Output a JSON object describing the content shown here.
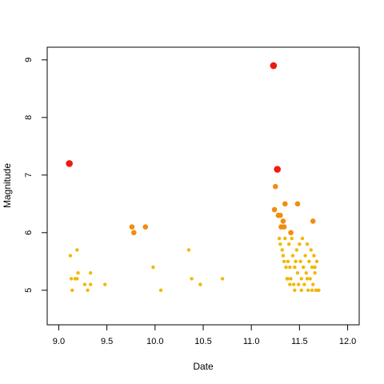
{
  "chart_data": {
    "type": "scatter",
    "title": "",
    "xlabel": "Date",
    "ylabel": "Magnitude",
    "xlim": [
      8.88,
      12.12
    ],
    "ylim": [
      4.4,
      9.22
    ],
    "xticks": [
      "9.0",
      "9.5",
      "10.0",
      "10.5",
      "11.0",
      "11.5",
      "12.0"
    ],
    "yticks": [
      "5",
      "6",
      "7",
      "8",
      "9"
    ],
    "grid": false,
    "colors": {
      "low": "#F2B705",
      "mid": "#F28C0F",
      "high": "#EE1C0F"
    },
    "points": [
      {
        "x": 9.11,
        "y": 7.2
      },
      {
        "x": 11.23,
        "y": 8.9
      },
      {
        "x": 11.27,
        "y": 7.1
      },
      {
        "x": 9.76,
        "y": 6.1
      },
      {
        "x": 9.78,
        "y": 6.0
      },
      {
        "x": 9.9,
        "y": 6.1
      },
      {
        "x": 11.24,
        "y": 6.4
      },
      {
        "x": 11.25,
        "y": 6.8
      },
      {
        "x": 11.28,
        "y": 6.3
      },
      {
        "x": 11.3,
        "y": 6.3
      },
      {
        "x": 11.33,
        "y": 6.2
      },
      {
        "x": 11.34,
        "y": 6.1
      },
      {
        "x": 11.35,
        "y": 6.5
      },
      {
        "x": 11.31,
        "y": 6.1
      },
      {
        "x": 11.41,
        "y": 6.0
      },
      {
        "x": 11.48,
        "y": 6.5
      },
      {
        "x": 11.64,
        "y": 6.2
      },
      {
        "x": 9.12,
        "y": 5.6
      },
      {
        "x": 9.13,
        "y": 5.2
      },
      {
        "x": 9.14,
        "y": 5.0
      },
      {
        "x": 9.17,
        "y": 5.2
      },
      {
        "x": 9.19,
        "y": 5.7
      },
      {
        "x": 9.2,
        "y": 5.3
      },
      {
        "x": 9.19,
        "y": 5.2
      },
      {
        "x": 9.27,
        "y": 5.1
      },
      {
        "x": 9.3,
        "y": 5.0
      },
      {
        "x": 9.33,
        "y": 5.3
      },
      {
        "x": 9.33,
        "y": 5.1
      },
      {
        "x": 9.48,
        "y": 5.1
      },
      {
        "x": 9.98,
        "y": 5.4
      },
      {
        "x": 10.06,
        "y": 5.0
      },
      {
        "x": 10.35,
        "y": 5.7
      },
      {
        "x": 10.38,
        "y": 5.2
      },
      {
        "x": 10.47,
        "y": 5.1
      },
      {
        "x": 10.7,
        "y": 5.2
      },
      {
        "x": 11.29,
        "y": 5.9
      },
      {
        "x": 11.3,
        "y": 5.8
      },
      {
        "x": 11.32,
        "y": 5.7
      },
      {
        "x": 11.33,
        "y": 5.6
      },
      {
        "x": 11.34,
        "y": 5.5
      },
      {
        "x": 11.35,
        "y": 5.9
      },
      {
        "x": 11.36,
        "y": 5.4
      },
      {
        "x": 11.37,
        "y": 5.2
      },
      {
        "x": 11.38,
        "y": 5.5
      },
      {
        "x": 11.39,
        "y": 5.8
      },
      {
        "x": 11.4,
        "y": 5.4
      },
      {
        "x": 11.41,
        "y": 5.2
      },
      {
        "x": 11.42,
        "y": 5.9
      },
      {
        "x": 11.43,
        "y": 5.6
      },
      {
        "x": 11.44,
        "y": 5.1
      },
      {
        "x": 11.45,
        "y": 5.0
      },
      {
        "x": 11.46,
        "y": 5.5
      },
      {
        "x": 11.47,
        "y": 5.7
      },
      {
        "x": 11.48,
        "y": 5.3
      },
      {
        "x": 11.49,
        "y": 5.1
      },
      {
        "x": 11.5,
        "y": 5.8
      },
      {
        "x": 11.51,
        "y": 5.5
      },
      {
        "x": 11.52,
        "y": 5.2
      },
      {
        "x": 11.53,
        "y": 5.9
      },
      {
        "x": 11.54,
        "y": 5.4
      },
      {
        "x": 11.55,
        "y": 5.1
      },
      {
        "x": 11.56,
        "y": 5.6
      },
      {
        "x": 11.57,
        "y": 5.3
      },
      {
        "x": 11.58,
        "y": 5.8
      },
      {
        "x": 11.59,
        "y": 5.0
      },
      {
        "x": 11.6,
        "y": 5.5
      },
      {
        "x": 11.61,
        "y": 5.2
      },
      {
        "x": 11.62,
        "y": 5.7
      },
      {
        "x": 11.63,
        "y": 5.4
      },
      {
        "x": 11.64,
        "y": 5.1
      },
      {
        "x": 11.65,
        "y": 5.6
      },
      {
        "x": 11.66,
        "y": 5.3
      },
      {
        "x": 11.67,
        "y": 5.0
      },
      {
        "x": 11.68,
        "y": 5.5
      },
      {
        "x": 11.69,
        "y": 5.0
      },
      {
        "x": 11.7,
        "y": 5.0
      },
      {
        "x": 11.4,
        "y": 5.1
      },
      {
        "x": 11.45,
        "y": 5.4
      },
      {
        "x": 11.52,
        "y": 5.0
      },
      {
        "x": 11.58,
        "y": 5.2
      },
      {
        "x": 11.63,
        "y": 5.0
      },
      {
        "x": 11.66,
        "y": 5.4
      },
      {
        "x": 11.38,
        "y": 5.2
      }
    ]
  }
}
